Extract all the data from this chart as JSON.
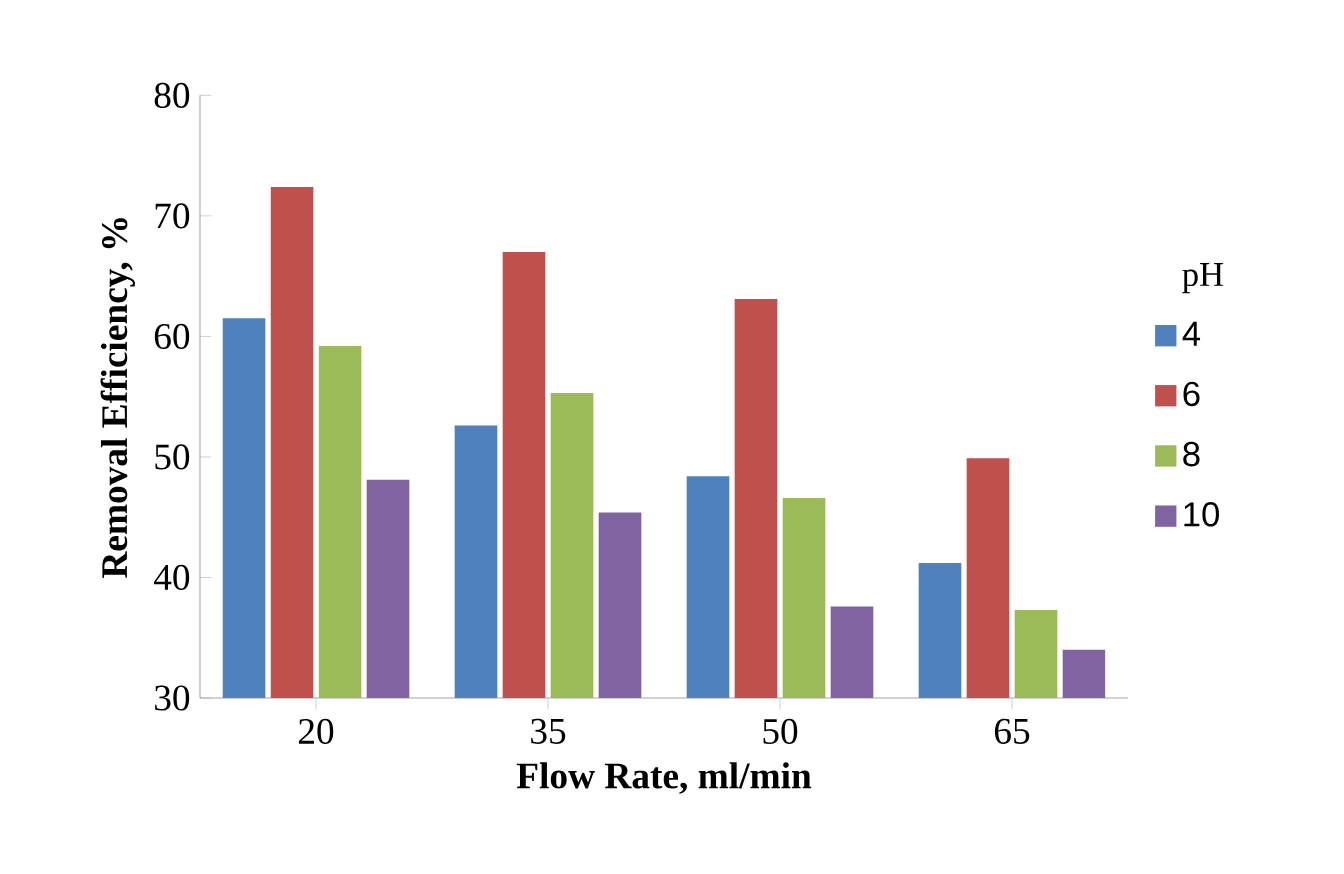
{
  "chart_data": {
    "type": "bar",
    "xlabel": "Flow Rate, ml/min",
    "ylabel": "Removal Efficiency, %",
    "legend_title": "pH",
    "categories": [
      "20",
      "35",
      "50",
      "65"
    ],
    "series": [
      {
        "name": "4",
        "color": "#4f81bd",
        "values": [
          61.5,
          52.6,
          48.4,
          41.2
        ]
      },
      {
        "name": "6",
        "color": "#c0504d",
        "values": [
          72.4,
          67.0,
          63.1,
          49.9
        ]
      },
      {
        "name": "8",
        "color": "#9bbb59",
        "values": [
          59.2,
          55.3,
          46.6,
          37.3
        ]
      },
      {
        "name": "10",
        "color": "#8064a2",
        "values": [
          48.1,
          45.4,
          37.6,
          34.0
        ]
      }
    ],
    "ylim": [
      30,
      80
    ],
    "yticks": [
      30,
      40,
      50,
      60,
      70,
      80
    ],
    "grid": false,
    "legend": "right"
  }
}
